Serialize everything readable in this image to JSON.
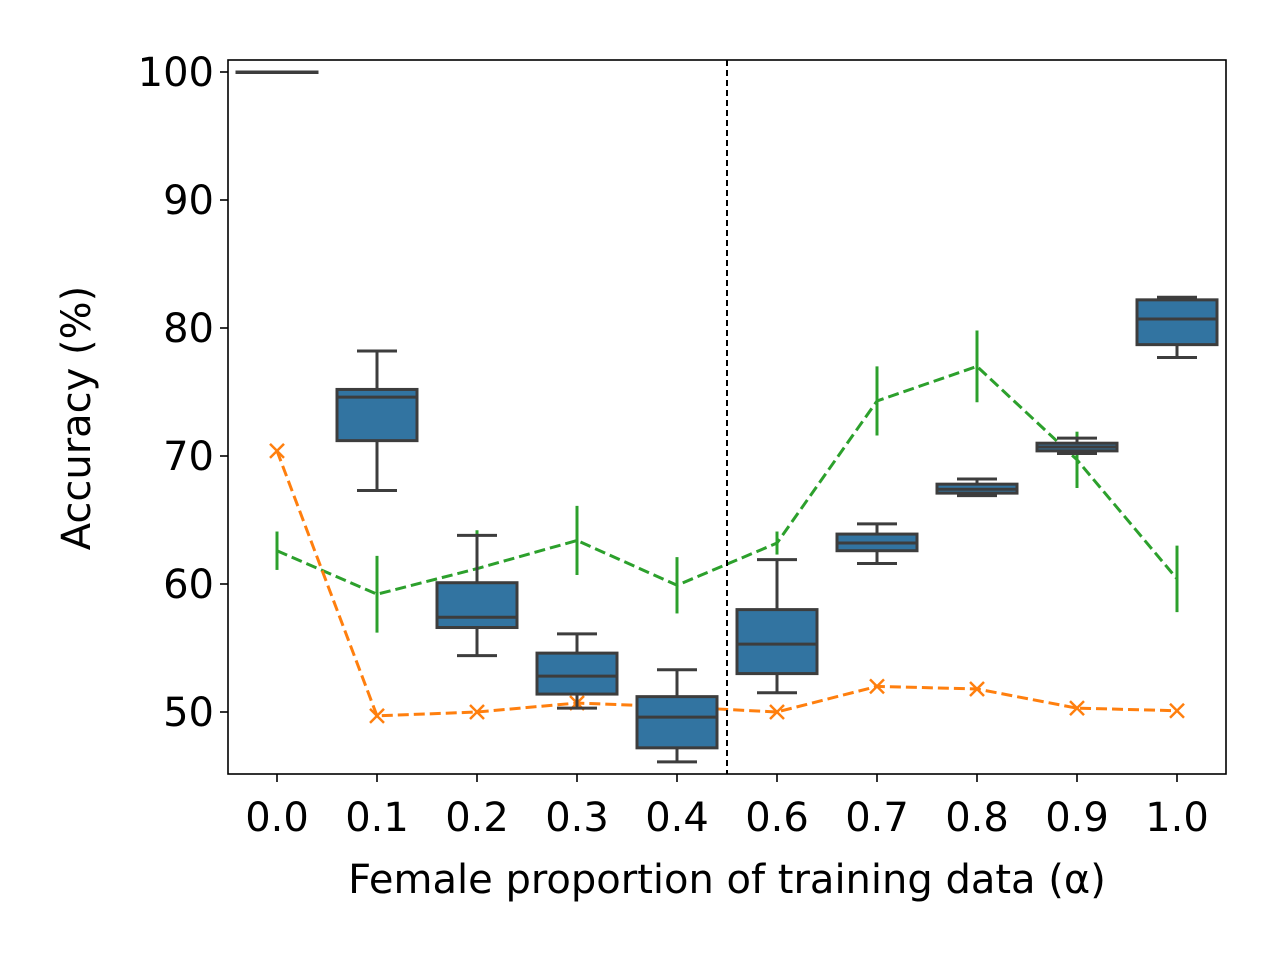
{
  "chart_data": {
    "type": "boxplot+line",
    "title": "",
    "xlabel": "Female proportion of training data (α)",
    "ylabel": "Accuracy (%)",
    "categories": [
      "0.0",
      "0.1",
      "0.2",
      "0.3",
      "0.4",
      "0.6",
      "0.7",
      "0.8",
      "0.9",
      "1.0"
    ],
    "ylim": [
      45,
      101
    ],
    "yticks": [
      "100",
      "90",
      "80",
      "70",
      "60",
      "50"
    ],
    "divider_after_category": "0.4",
    "boxes": {
      "color": "#3274a1",
      "edge_color": "#3d3d3d",
      "stats": [
        {
          "whislo": 100.0,
          "q1": 100.0,
          "med": 100.0,
          "q3": 100.0,
          "whishi": 100.0
        },
        {
          "whislo": 67.3,
          "q1": 71.2,
          "med": 74.6,
          "q3": 75.2,
          "whishi": 78.2
        },
        {
          "whislo": 54.4,
          "q1": 56.6,
          "med": 57.4,
          "q3": 60.1,
          "whishi": 63.8
        },
        {
          "whislo": 50.3,
          "q1": 51.4,
          "med": 52.8,
          "q3": 54.6,
          "whishi": 56.1
        },
        {
          "whislo": 46.1,
          "q1": 47.2,
          "med": 49.6,
          "q3": 51.2,
          "whishi": 53.3
        },
        {
          "whislo": 51.5,
          "q1": 53.0,
          "med": 55.3,
          "q3": 58.0,
          "whishi": 61.9
        },
        {
          "whislo": 61.6,
          "q1": 62.6,
          "med": 63.2,
          "q3": 63.9,
          "whishi": 64.7
        },
        {
          "whislo": 66.9,
          "q1": 67.1,
          "med": 67.4,
          "q3": 67.8,
          "whishi": 68.2
        },
        {
          "whislo": 70.2,
          "q1": 70.4,
          "med": 70.7,
          "q3": 71.0,
          "whishi": 71.4
        },
        {
          "whislo": 77.7,
          "q1": 78.7,
          "med": 80.7,
          "q3": 82.2,
          "whishi": 82.4
        }
      ]
    },
    "series": [
      {
        "name": "green dashed (error bars)",
        "color": "#2ca02c",
        "marker": "|",
        "values": [
          62.6,
          59.2,
          61.2,
          63.4,
          59.9,
          63.2,
          74.3,
          77.0,
          69.7,
          60.4
        ],
        "err": [
          1.5,
          3.0,
          3.0,
          2.7,
          2.2,
          0.9,
          2.7,
          2.8,
          2.2,
          2.6
        ]
      },
      {
        "name": "orange dashed (x markers)",
        "color": "#ff7f0e",
        "marker": "x",
        "values": [
          70.4,
          49.7,
          50.0,
          50.7,
          50.4,
          50.0,
          52.0,
          51.8,
          50.3,
          50.1
        ]
      }
    ]
  }
}
